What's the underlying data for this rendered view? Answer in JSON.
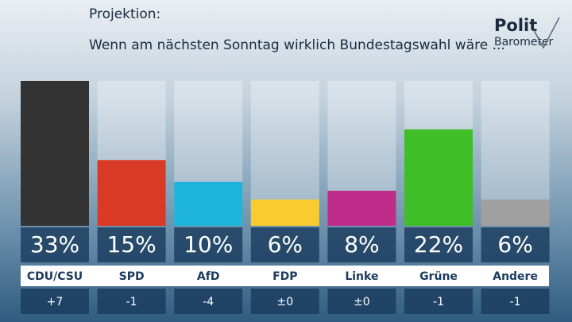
{
  "chart_data": {
    "type": "bar",
    "title": "Projektion:",
    "subtitle": "Wenn am nächsten Sonntag wirklich Bundestagswahl wäre ...",
    "categories": [
      "CDU/CSU",
      "SPD",
      "AfD",
      "FDP",
      "Linke",
      "Grüne",
      "Andere"
    ],
    "values": [
      33,
      15,
      10,
      6,
      8,
      22,
      6
    ],
    "value_labels": [
      "33%",
      "15%",
      "10%",
      "6%",
      "8%",
      "22%",
      "6%"
    ],
    "colors": [
      "#333333",
      "#d93a26",
      "#1fb4dc",
      "#f9cb2e",
      "#bf2c8a",
      "#3fbe27",
      "#a0a0a0"
    ],
    "changes": [
      "+7",
      "-1",
      "-4",
      "±0",
      "±0",
      "-1",
      "-1"
    ]
  },
  "logo": {
    "line1": "Polit",
    "line2": "Barometer"
  }
}
